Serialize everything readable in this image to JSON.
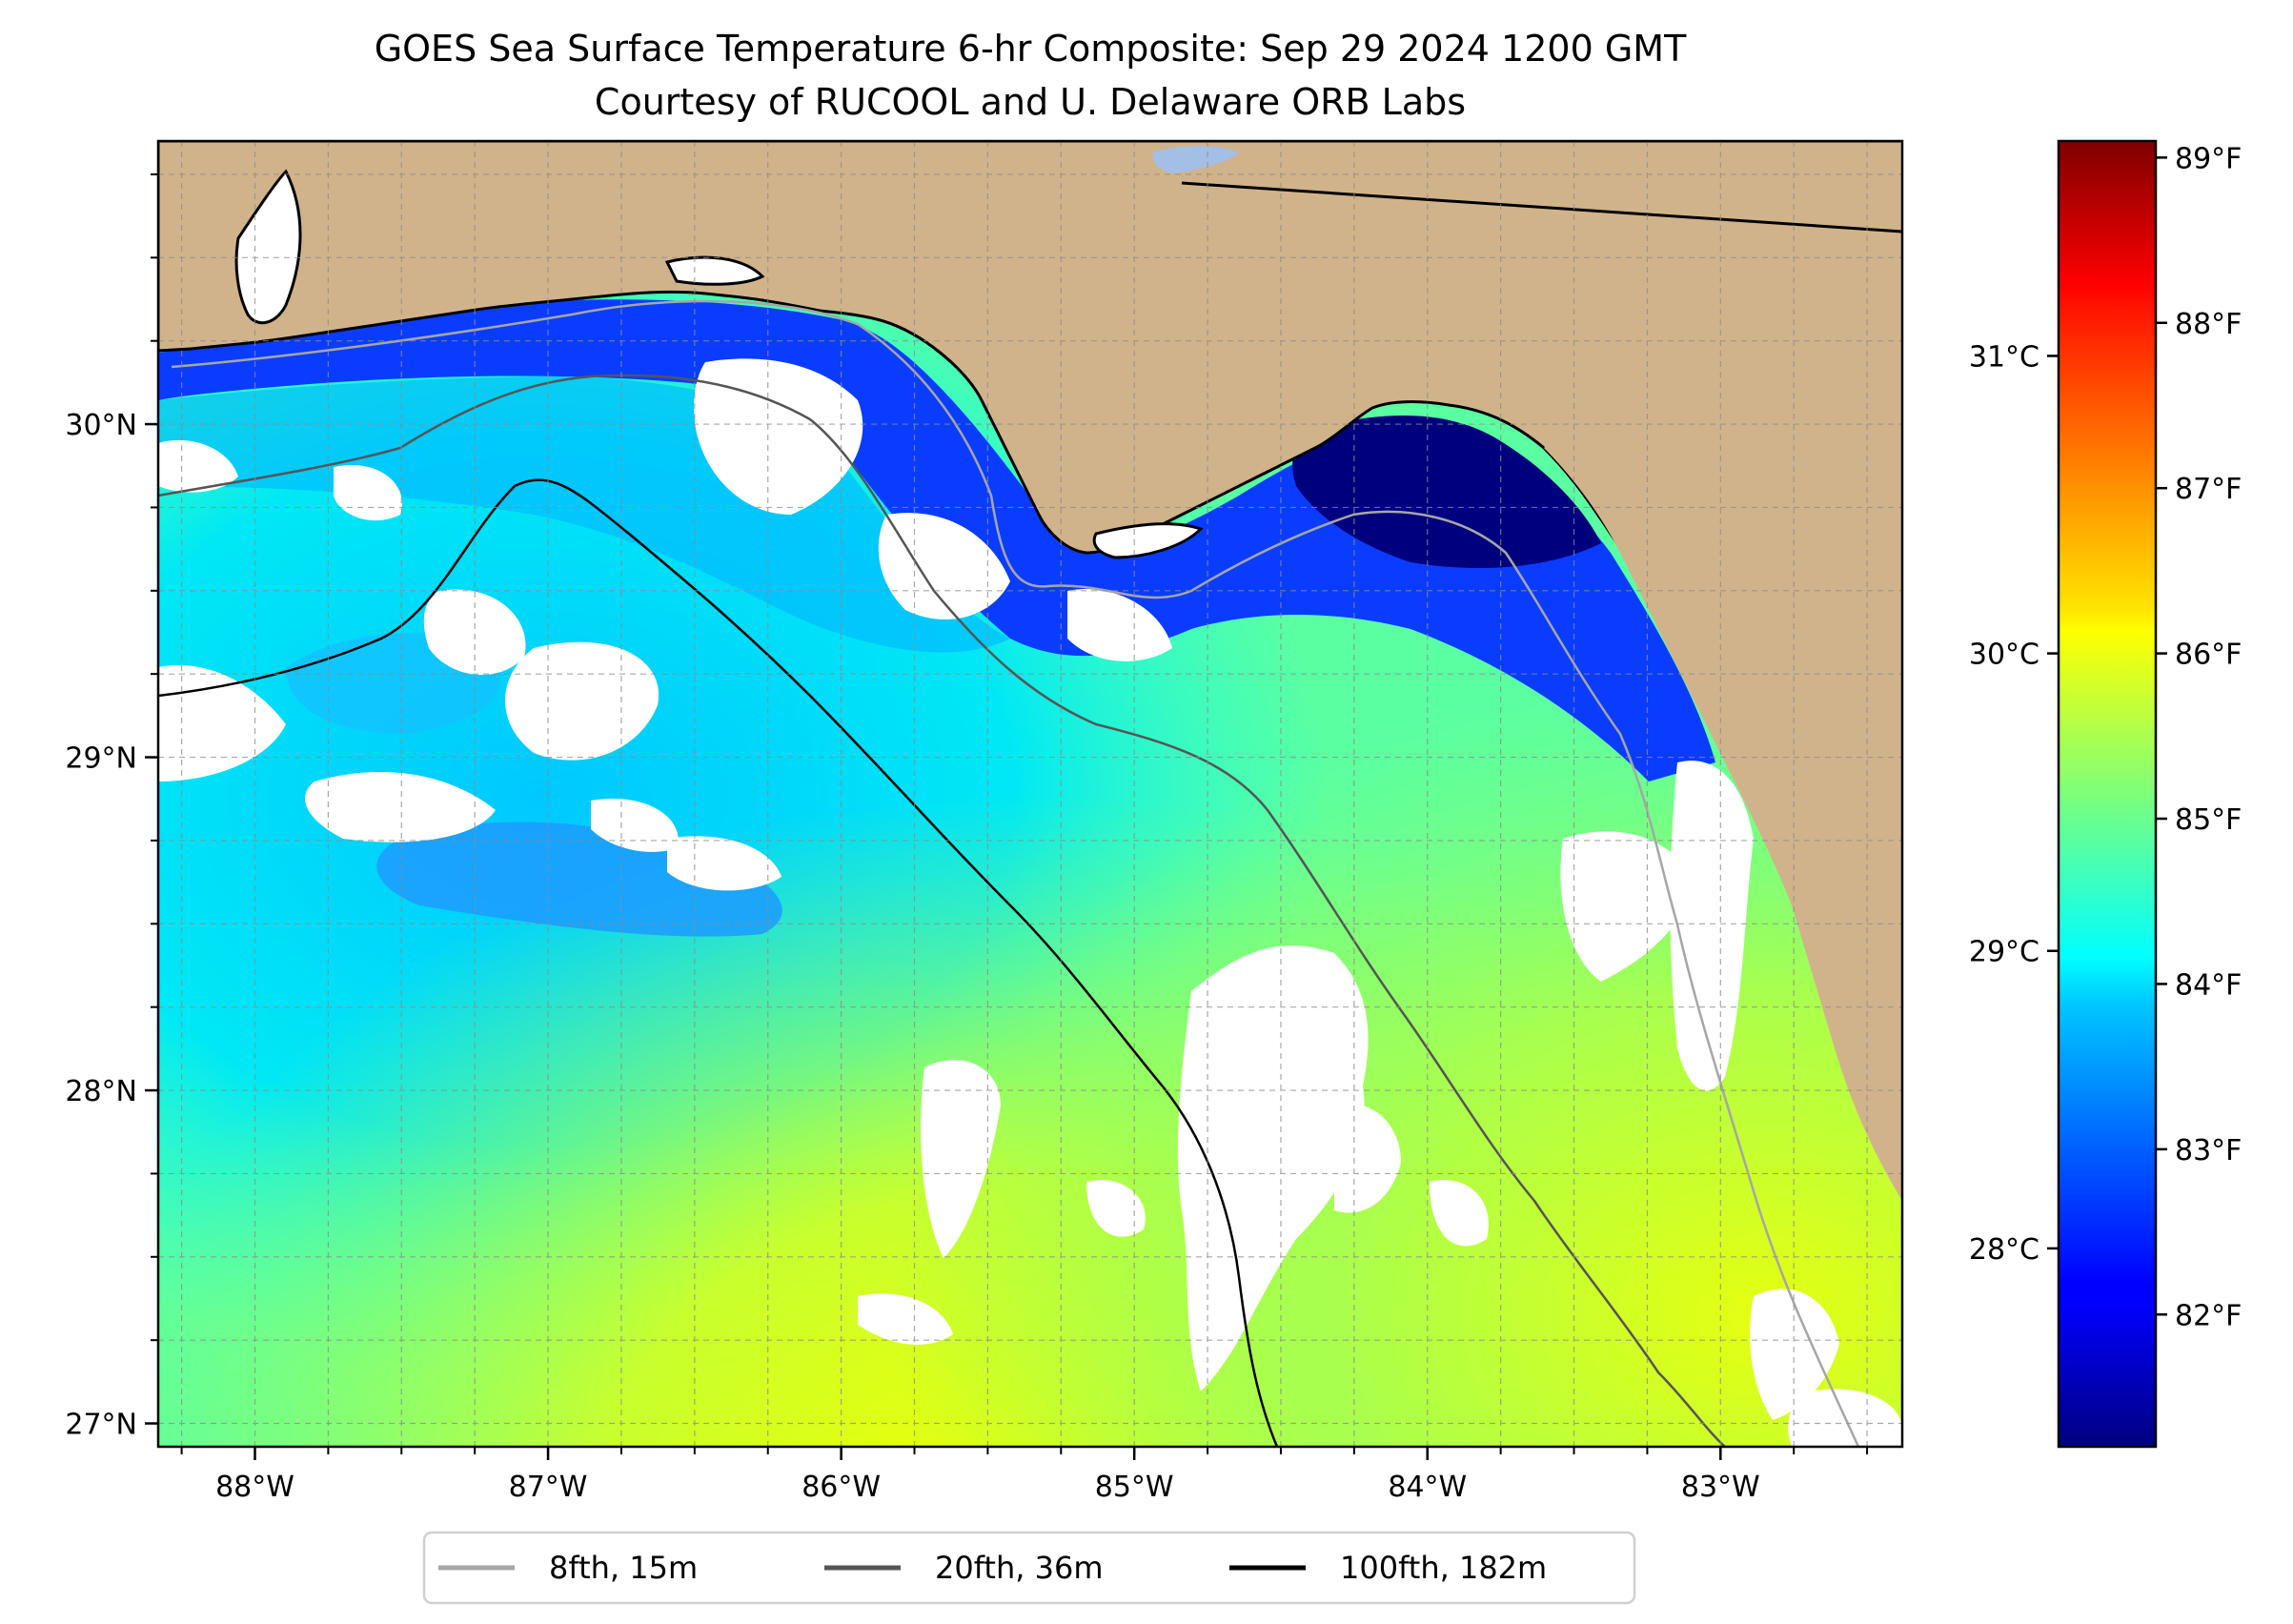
{
  "title": {
    "line1": "GOES Sea Surface Temperature 6-hr Composite: Sep 29 2024 1200 GMT",
    "line2": "Courtesy of RUCOOL and U. Delaware ORB Labs"
  },
  "map": {
    "extent": {
      "lon_min": -88.33,
      "lon_max": -82.38,
      "lat_min": 26.93,
      "lat_max": 30.85
    },
    "lon_ticks": [
      {
        "value": -88,
        "label": "88°W"
      },
      {
        "value": -87,
        "label": "87°W"
      },
      {
        "value": -86,
        "label": "86°W"
      },
      {
        "value": -85,
        "label": "85°W"
      },
      {
        "value": -84,
        "label": "84°W"
      },
      {
        "value": -83,
        "label": "83°W"
      }
    ],
    "lat_ticks": [
      {
        "value": 27,
        "label": "27°N"
      },
      {
        "value": 28,
        "label": "28°N"
      },
      {
        "value": 29,
        "label": "29°N"
      },
      {
        "value": 30,
        "label": "30°N"
      }
    ],
    "gridlines": true,
    "grid_spacing_deg": 0.25,
    "colors": {
      "land": "#d1b38b",
      "no_data": "#ffffff",
      "coastline": "#000000",
      "lake": "#a3bfe6"
    }
  },
  "isobaths": [
    {
      "label": "8fth, 15m",
      "color": "#a6a6a6"
    },
    {
      "label": "20fth, 36m",
      "color": "#555555"
    },
    {
      "label": "100fth, 182m",
      "color": "#000000"
    }
  ],
  "colorbar": {
    "colormap": "jet",
    "range_f": [
      81.2,
      89.1
    ],
    "fahrenheit_ticks": [
      {
        "value": 82,
        "label": "82°F"
      },
      {
        "value": 83,
        "label": "83°F"
      },
      {
        "value": 84,
        "label": "84°F"
      },
      {
        "value": 85,
        "label": "85°F"
      },
      {
        "value": 86,
        "label": "86°F"
      },
      {
        "value": 87,
        "label": "87°F"
      },
      {
        "value": 88,
        "label": "88°F"
      },
      {
        "value": 89,
        "label": "89°F"
      }
    ],
    "celsius_ticks": [
      {
        "value": 28,
        "label": "28°C"
      },
      {
        "value": 29,
        "label": "29°C"
      },
      {
        "value": 30,
        "label": "30°C"
      },
      {
        "value": 31,
        "label": "31°C"
      }
    ]
  }
}
